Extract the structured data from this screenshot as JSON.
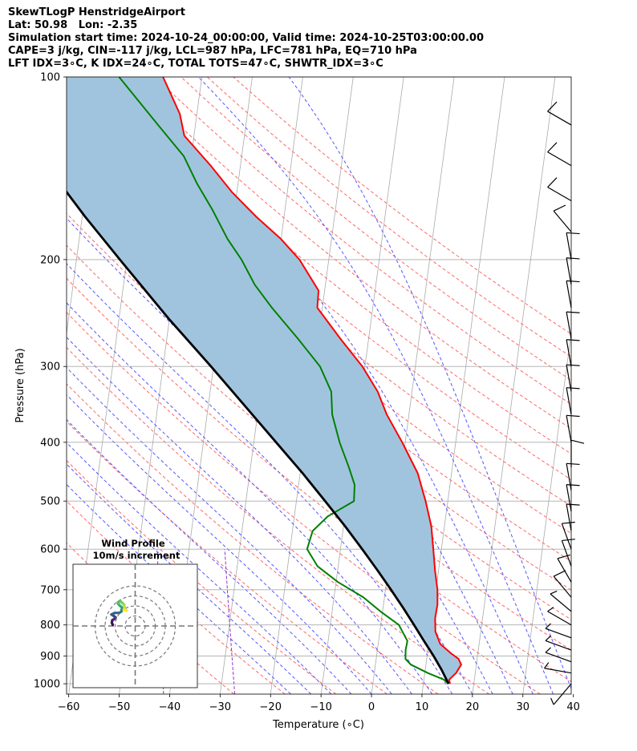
{
  "header": {
    "line1": "SkewTLogP HenstridgeAirport",
    "line2": "Lat: 50.98   Lon: -2.35",
    "line3": "Simulation start time: 2024-10-24_00:00:00, Valid time: 2024-10-25T03:00:00.00",
    "line4": "CAPE=3 j/kg, CIN=-117 j/kg, LCL=987 hPa, LFC=781 hPa, EQ=710 hPa",
    "line5": "LFT IDX=3∘C, K IDX=24∘C, TOTAL TOTS=47∘C, SHWTR_IDX=3∘C"
  },
  "colors": {
    "temperature": "#ff0000",
    "dewpoint": "#008000",
    "parcel": "#000000",
    "cape_fill": "#a1c4de",
    "dry_adiabat": "#ff6666",
    "moist_adiabat": "#5555ff",
    "mixing_ratio": "#9933cc",
    "isotherm": "#aaaaaa"
  },
  "chart_data": {
    "type": "line",
    "subtype": "skew-T log-P diagram",
    "xlabel": "Temperature (∘C)",
    "ylabel": "Pressure (hPa)",
    "xlim": [
      -60,
      40
    ],
    "ylim": [
      1040,
      100
    ],
    "y_scale": "log",
    "x_ticks": [
      "−60",
      "−50",
      "−40",
      "−30",
      "−20",
      "−10",
      "0",
      "10",
      "20",
      "30",
      "40"
    ],
    "x_tick_values": [
      -60,
      -50,
      -40,
      -30,
      -20,
      -10,
      0,
      10,
      20,
      30,
      40
    ],
    "y_ticks": [
      "100",
      "200",
      "300",
      "400",
      "500",
      "600",
      "700",
      "800",
      "900",
      "1000"
    ],
    "y_tick_values": [
      100,
      200,
      300,
      400,
      500,
      600,
      700,
      800,
      900,
      1000
    ],
    "grid": true,
    "series": [
      {
        "key": "temperature",
        "pressure": [
          1000,
          985,
          960,
          930,
          910,
          890,
          860,
          820,
          780,
          740,
          700,
          650,
          600,
          550,
          500,
          450,
          400,
          360,
          330,
          300,
          270,
          240,
          225,
          200,
          185,
          170,
          155,
          140,
          125,
          115,
          100
        ],
        "values": [
          15.3,
          15.0,
          16.2,
          17.0,
          16.3,
          14.6,
          12.3,
          11.0,
          10.6,
          10.7,
          10.3,
          9.3,
          8.4,
          7.4,
          5.6,
          3.3,
          -0.6,
          -4.4,
          -6.8,
          -10.5,
          -15.6,
          -21.0,
          -21.2,
          -25.8,
          -30.0,
          -35.5,
          -40.9,
          -45.9,
          -51.9,
          -53.4,
          -57.7
        ]
      },
      {
        "key": "dewpoint",
        "pressure": [
          1000,
          985,
          960,
          930,
          910,
          880,
          850,
          800,
          760,
          720,
          680,
          640,
          600,
          560,
          530,
          500,
          470,
          440,
          400,
          360,
          330,
          300,
          270,
          240,
          220,
          200,
          185,
          165,
          150,
          135,
          120,
          100
        ],
        "values": [
          15.0,
          14.0,
          10.6,
          7.0,
          5.8,
          5.6,
          5.7,
          3.6,
          -0.4,
          -4.2,
          -9.6,
          -14.1,
          -16.6,
          -16.0,
          -13.4,
          -8.6,
          -8.9,
          -10.5,
          -13.0,
          -15.2,
          -16.0,
          -18.9,
          -24.0,
          -30.0,
          -34.0,
          -37.3,
          -40.6,
          -44.5,
          -48.1,
          -51.5,
          -57.4,
          -66.4
        ]
      },
      {
        "key": "parcel",
        "pressure": [
          1000,
          950,
          900,
          850,
          800,
          750,
          700,
          650,
          600,
          550,
          500,
          450,
          400,
          350,
          300,
          250,
          200,
          170,
          140,
          120,
          100
        ],
        "values": [
          15.0,
          13.3,
          11.3,
          9.0,
          6.6,
          4.0,
          1.1,
          -2.1,
          -5.7,
          -9.7,
          -14.3,
          -19.5,
          -25.6,
          -32.5,
          -40.5,
          -50.2,
          -61.4,
          -69.4,
          -78.4,
          -85.4,
          -93.6
        ]
      }
    ],
    "background_lines": [
      "isotherms (gray)",
      "dry adiabats (red dashed)",
      "moist adiabats (blue dashed)",
      "mixing ratio lines (purple dashed)"
    ],
    "wind_barbs": {
      "pressure": [
        1000,
        960,
        920,
        880,
        840,
        800,
        760,
        720,
        680,
        640,
        600,
        560,
        520,
        480,
        440,
        400,
        360,
        330,
        300,
        270,
        240,
        220,
        200,
        180,
        160,
        140,
        120
      ],
      "speed": [
        5,
        8,
        5,
        5,
        5,
        5,
        5,
        10,
        10,
        10,
        10,
        10,
        10,
        10,
        10,
        10,
        10,
        10,
        10,
        10,
        10,
        10,
        10,
        10,
        10,
        10,
        10
      ],
      "direction": [
        220,
        280,
        290,
        290,
        290,
        300,
        310,
        320,
        330,
        340,
        340,
        350,
        350,
        350,
        0,
        350,
        350,
        350,
        350,
        350,
        350,
        350,
        350,
        320,
        300,
        300,
        300
      ]
    }
  },
  "inset": {
    "title_line1": "Wind Profile",
    "title_line2": "10m/s increment",
    "hodograph": {
      "u": [
        -11,
        -11.4,
        -11.2,
        -10.2,
        -9.6,
        -10.6,
        -11.6,
        -10,
        -7.8,
        -6.8,
        -6.6,
        -6.4,
        -6.6,
        -7.6,
        -8.4,
        -8.4,
        -7.2,
        -6.2,
        -5.4,
        -5.2,
        -5.4,
        -4.2,
        -5.6
      ],
      "v": [
        0.6,
        1.6,
        2.8,
        3.4,
        4.2,
        5.0,
        5.6,
        6.4,
        6.4,
        7.0,
        8.0,
        8.4,
        9.2,
        10.0,
        11.0,
        11.6,
        12.0,
        11.2,
        10.4,
        9.6,
        8.4,
        7.6,
        7.8
      ]
    }
  }
}
